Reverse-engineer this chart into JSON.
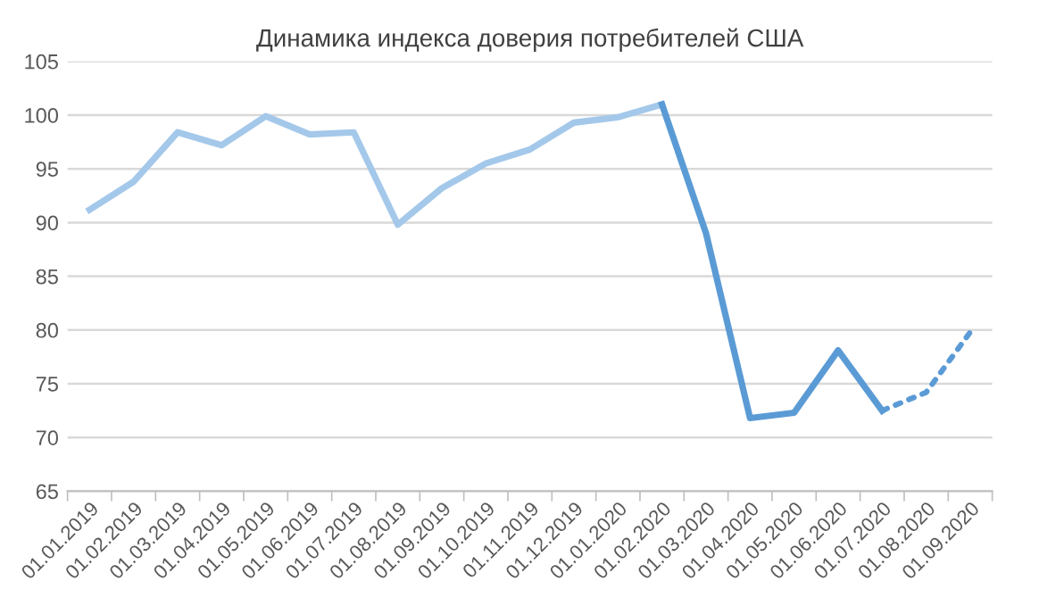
{
  "chart_data": {
    "type": "line",
    "title": "Динамика индекса доверия потребителей США",
    "categories": [
      "01.01.2019",
      "01.02.2019",
      "01.03.2019",
      "01.04.2019",
      "01.05.2019",
      "01.06.2019",
      "01.07.2019",
      "01.08.2019",
      "01.09.2019",
      "01.10.2019",
      "01.11.2019",
      "01.12.2019",
      "01.01.2020",
      "01.02.2020",
      "01.03.2020",
      "01.04.2020",
      "01.05.2020",
      "01.06.2020",
      "01.07.2020",
      "01.08.2020",
      "01.09.2020"
    ],
    "series": [
      {
        "color": "#a4c8ea",
        "line_style": "solid",
        "values": [
          91.2,
          93.8,
          98.4,
          97.2,
          99.9,
          98.2,
          98.4,
          89.8,
          93.2,
          95.5,
          96.8,
          99.3,
          99.8,
          101.0,
          null,
          null,
          null,
          null,
          null,
          null,
          null
        ]
      },
      {
        "color": "#5b9bd5",
        "line_style": "solid",
        "values": [
          null,
          null,
          null,
          null,
          null,
          null,
          null,
          null,
          null,
          null,
          null,
          null,
          null,
          101.0,
          89.0,
          71.8,
          72.3,
          78.1,
          72.5,
          null,
          null
        ]
      },
      {
        "color": "#5b9bd5",
        "line_style": "dotted",
        "values": [
          null,
          null,
          null,
          null,
          null,
          null,
          null,
          null,
          null,
          null,
          null,
          null,
          null,
          null,
          null,
          null,
          null,
          null,
          72.5,
          74.2,
          79.8
        ]
      }
    ],
    "ylim": [
      65,
      105
    ],
    "yticks": [
      65,
      70,
      75,
      80,
      85,
      90,
      95,
      100,
      105
    ],
    "grid": "y"
  }
}
